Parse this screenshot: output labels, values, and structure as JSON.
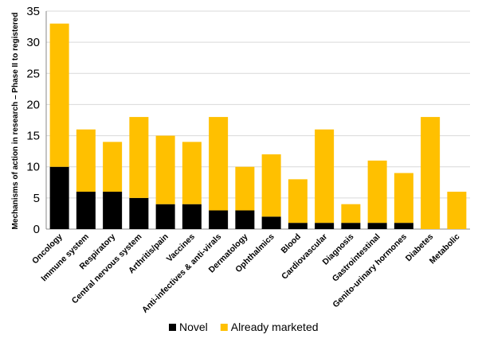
{
  "chart_data": {
    "type": "stacked-bar",
    "y_label": "Mechanisms of action in research – Phase II to registered",
    "categories": [
      "Oncology",
      "Immune system",
      "Respiratory",
      "Central nervous system",
      "Arthritis/pain",
      "Vaccines",
      "Anti-infectives & anti-virals",
      "Dermatology",
      "Ophthalmics",
      "Blood",
      "Cardiovascular",
      "Diagnosis",
      "Gastrointestinal",
      "Genito-urinary hormones",
      "Diabetes",
      "Metabolic"
    ],
    "series": [
      {
        "name": "Novel",
        "color": "#000000",
        "values": [
          10,
          6,
          6,
          5,
          4,
          4,
          3,
          3,
          2,
          1,
          1,
          1,
          1,
          1,
          0,
          0
        ]
      },
      {
        "name": "Already marketed",
        "color": "#ffc000",
        "values": [
          23,
          10,
          8,
          13,
          11,
          10,
          15,
          7,
          10,
          7,
          15,
          3,
          10,
          8,
          18,
          6
        ]
      }
    ],
    "ylim": [
      0,
      35
    ],
    "yticks": [
      0,
      5,
      10,
      15,
      20,
      25,
      30,
      35
    ],
    "grid": true,
    "legend": "bottom"
  }
}
